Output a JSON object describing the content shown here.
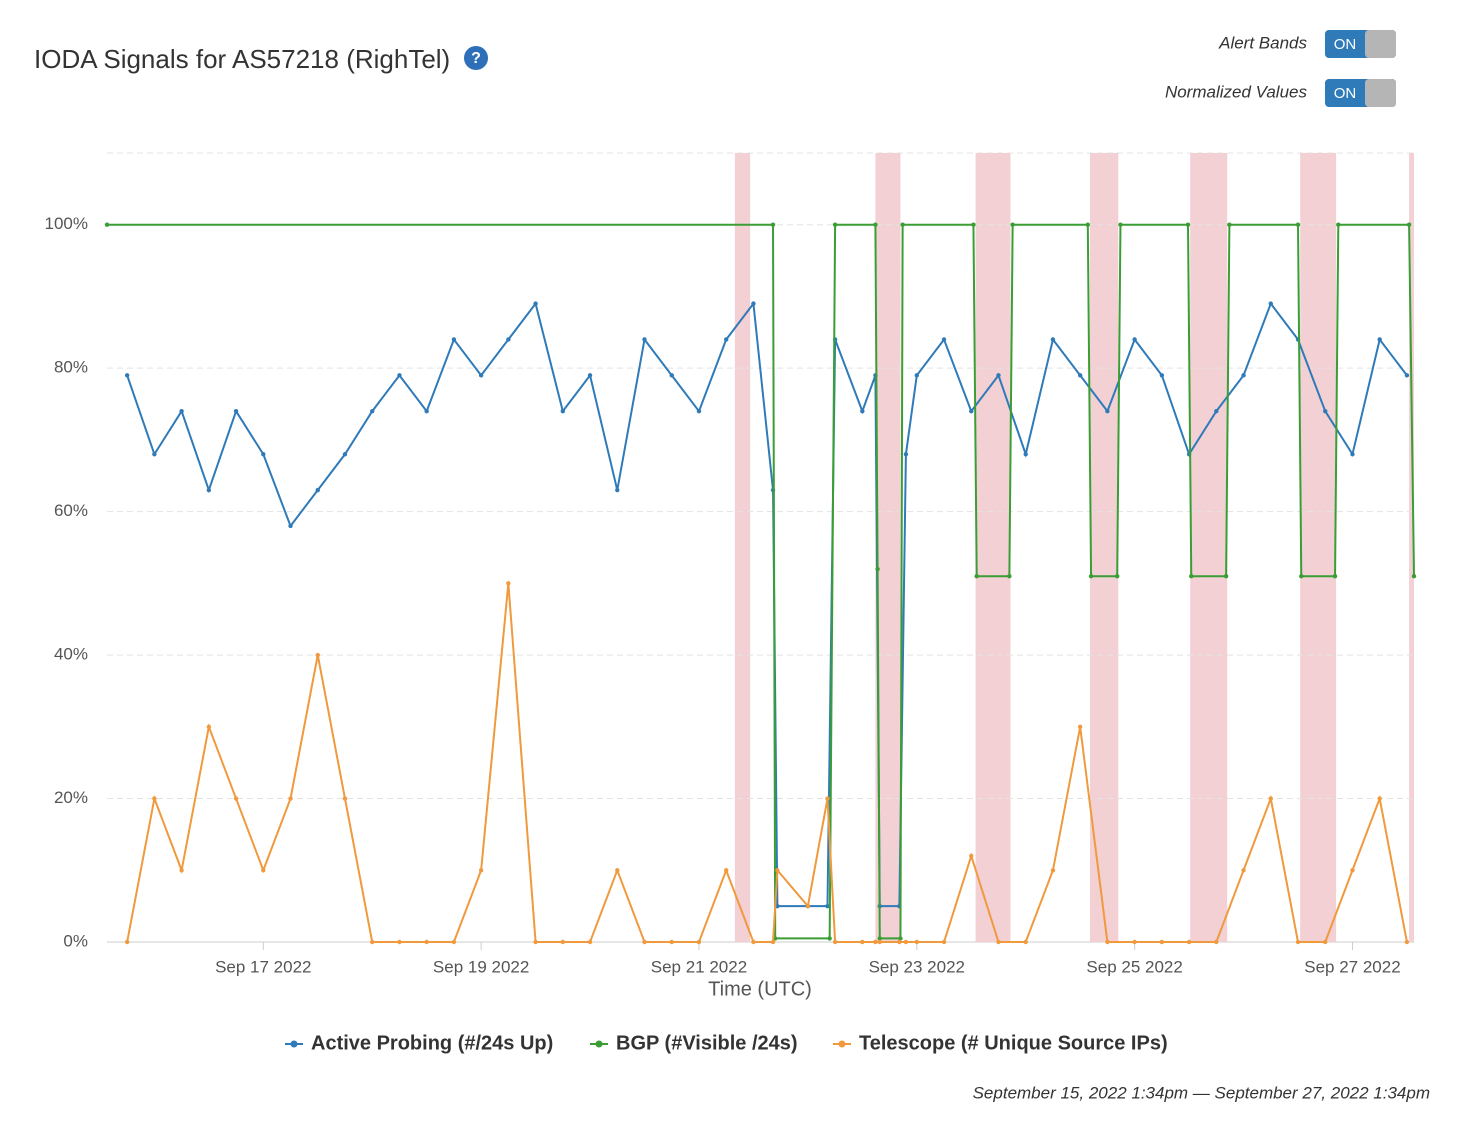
{
  "chart_data": {
    "type": "line",
    "title": "IODA Signals for AS57218 (RighTel)",
    "help_icon": "?",
    "toggles": [
      {
        "label": "Alert Bands",
        "state": "ON"
      },
      {
        "label": "Normalized Values",
        "state": "ON"
      }
    ],
    "x_label": "Time (UTC)",
    "date_range": "September 15, 2022 1:34pm — September 27, 2022 1:34pm",
    "xlim": [
      15.565,
      27.565
    ],
    "xticks": [
      {
        "value": 17,
        "label": "Sep 17 2022"
      },
      {
        "value": 19,
        "label": "Sep 19 2022"
      },
      {
        "value": 21,
        "label": "Sep 21 2022"
      },
      {
        "value": 23,
        "label": "Sep 23 2022"
      },
      {
        "value": 25,
        "label": "Sep 25 2022"
      },
      {
        "value": 27,
        "label": "Sep 27 2022"
      }
    ],
    "ylim": [
      0,
      110
    ],
    "yticks": [
      {
        "value": 0,
        "label": "0%"
      },
      {
        "value": 20,
        "label": "20%"
      },
      {
        "value": 40,
        "label": "40%"
      },
      {
        "value": 60,
        "label": "60%"
      },
      {
        "value": 80,
        "label": "80%"
      },
      {
        "value": 100,
        "label": "100%"
      }
    ],
    "grid": true,
    "alert_band_color": "#f2d0d4",
    "alert_bands": [
      [
        21.33,
        21.47
      ],
      [
        22.62,
        22.85
      ],
      [
        23.54,
        23.86
      ],
      [
        24.59,
        24.85
      ],
      [
        25.51,
        25.85
      ],
      [
        26.52,
        26.85
      ],
      [
        27.52,
        27.565
      ]
    ],
    "series": [
      {
        "name": "Active Probing (#/24s Up)",
        "color": "#2f7ab8",
        "x": [
          15.75,
          16,
          16.25,
          16.5,
          16.75,
          17,
          17.25,
          17.5,
          17.75,
          18,
          18.25,
          18.5,
          18.75,
          19,
          19.25,
          19.5,
          19.75,
          20,
          20.25,
          20.5,
          20.75,
          21,
          21.25,
          21.5,
          21.68,
          21.72,
          22.0,
          22.18,
          22.25,
          22.5,
          22.62,
          22.66,
          22.84,
          22.9,
          23.0,
          23.25,
          23.5,
          23.75,
          24,
          24.25,
          24.5,
          24.75,
          25,
          25.25,
          25.5,
          25.75,
          26,
          26.25,
          26.5,
          26.75,
          27,
          27.25,
          27.5
        ],
        "values": [
          79,
          68,
          74,
          63,
          74,
          68,
          58,
          63,
          68,
          74,
          79,
          74,
          84,
          79,
          84,
          89,
          74,
          79,
          63,
          84,
          79,
          74,
          84,
          89,
          63,
          5,
          5,
          5,
          84,
          74,
          79,
          5,
          5,
          68,
          79,
          84,
          74,
          79,
          68,
          84,
          79,
          74,
          84,
          79,
          68,
          74,
          79,
          89,
          84,
          74,
          68,
          84,
          79
        ]
      },
      {
        "name": "BGP (#Visible /24s)",
        "color": "#3a9e35",
        "x": [
          15.565,
          21.68,
          21.7,
          22.2,
          22.25,
          22.62,
          22.64,
          22.66,
          22.85,
          22.87,
          23.52,
          23.55,
          23.85,
          23.88,
          24.57,
          24.6,
          24.84,
          24.87,
          25.49,
          25.52,
          25.84,
          25.87,
          26.5,
          26.53,
          26.84,
          26.87,
          27.52,
          27.565
        ],
        "values": [
          100,
          100,
          0.5,
          0.5,
          100,
          100,
          52,
          0.5,
          0.5,
          100,
          100,
          51,
          51,
          100,
          100,
          51,
          51,
          100,
          100,
          51,
          51,
          100,
          100,
          51,
          51,
          100,
          100,
          51
        ]
      },
      {
        "name": "Telescope (# Unique Source IPs)",
        "color": "#f0993d",
        "x": [
          15.75,
          16,
          16.25,
          16.5,
          16.75,
          17,
          17.25,
          17.5,
          17.75,
          18,
          18.25,
          18.5,
          18.75,
          19,
          19.25,
          19.5,
          19.75,
          20,
          20.25,
          20.5,
          20.75,
          21,
          21.25,
          21.5,
          21.68,
          21.72,
          22.0,
          22.18,
          22.25,
          22.5,
          22.62,
          22.66,
          22.84,
          22.9,
          23.0,
          23.25,
          23.5,
          23.75,
          24,
          24.25,
          24.5,
          24.75,
          25,
          25.25,
          25.5,
          25.75,
          26,
          26.25,
          26.5,
          26.75,
          27,
          27.25,
          27.5
        ],
        "values": [
          0,
          20,
          10,
          30,
          20,
          10,
          20,
          40,
          20,
          0,
          0,
          0,
          0,
          10,
          50,
          0,
          0,
          0,
          10,
          0,
          0,
          0,
          10,
          0,
          0,
          10,
          5,
          20,
          0,
          0,
          0,
          0,
          0,
          0,
          0,
          0,
          12,
          0,
          0,
          10,
          30,
          0,
          0,
          0,
          0,
          0,
          10,
          20,
          0,
          0,
          10,
          20,
          0
        ]
      }
    ]
  }
}
